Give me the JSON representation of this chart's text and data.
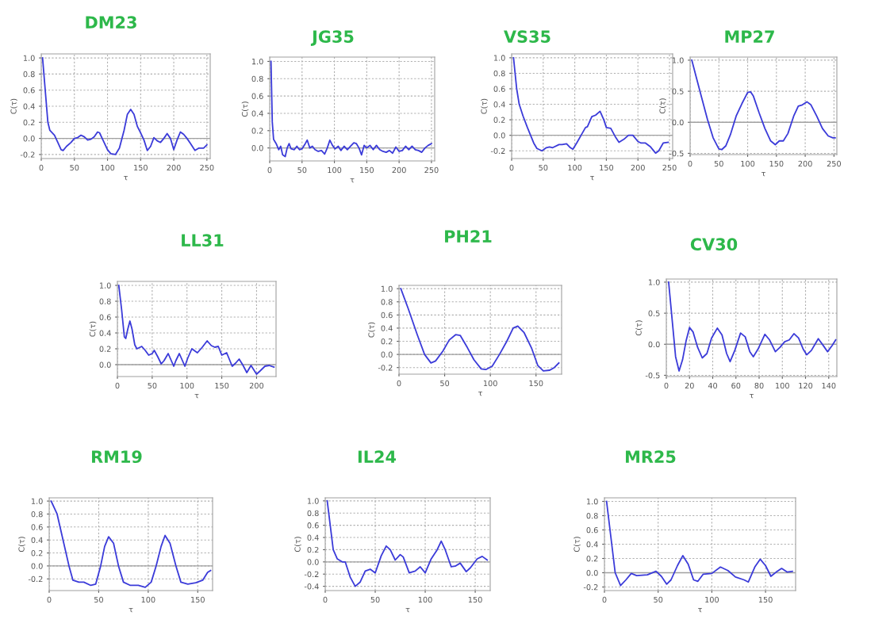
{
  "chart_data": [
    {
      "type": "line",
      "title": "DM23",
      "xlabel": "τ",
      "ylabel": "C(τ)",
      "grid": true,
      "xlim": [
        0,
        255
      ],
      "ylim": [
        -0.25,
        1.05
      ],
      "xticks": [
        0,
        50,
        100,
        150,
        200,
        250
      ],
      "yticks": [
        {
          "value": -0.2,
          "label": "-0.2"
        },
        {
          "value": 0,
          "label": "0.0"
        },
        {
          "value": 0.2,
          "label": "0.2"
        },
        {
          "value": 0.4,
          "label": "0.4"
        },
        {
          "value": 0.6,
          "label": "0.6"
        },
        {
          "value": 0.8,
          "label": "0.8"
        },
        {
          "value": 1.0,
          "label": "1.0"
        }
      ],
      "ref_lines": [
        {
          "axis": "y",
          "value": 0,
          "color": "#a0a0a0"
        }
      ],
      "x": [
        2,
        5,
        10,
        13,
        20,
        25,
        30,
        33,
        38,
        45,
        50,
        55,
        60,
        65,
        70,
        75,
        80,
        85,
        88,
        92,
        100,
        105,
        112,
        118,
        125,
        130,
        135,
        140,
        145,
        150,
        155,
        160,
        165,
        170,
        175,
        180,
        185,
        190,
        195,
        200,
        205,
        210,
        215,
        220,
        225,
        232,
        238,
        245,
        250
      ],
      "series": [
        {
          "color": "#3b3bd9",
          "values": [
            1.0,
            0.7,
            0.2,
            0.1,
            0.04,
            -0.05,
            -0.14,
            -0.15,
            -0.1,
            -0.05,
            0.0,
            0.01,
            0.04,
            0.02,
            -0.02,
            -0.01,
            0.02,
            0.08,
            0.07,
            0.0,
            -0.14,
            -0.19,
            -0.2,
            -0.12,
            0.1,
            0.3,
            0.36,
            0.3,
            0.15,
            0.07,
            -0.02,
            -0.15,
            -0.1,
            0.01,
            -0.03,
            -0.05,
            0.0,
            0.06,
            0.0,
            -0.14,
            -0.02,
            0.08,
            0.05,
            0.0,
            -0.06,
            -0.15,
            -0.12,
            -0.12,
            -0.08
          ]
        }
      ]
    },
    {
      "type": "line",
      "title": "JG35",
      "xlabel": "τ",
      "ylabel": "C(τ)",
      "grid": true,
      "xlim": [
        0,
        255
      ],
      "ylim": [
        -0.15,
        1.05
      ],
      "xticks": [
        0,
        50,
        100,
        150,
        200,
        250
      ],
      "yticks": [
        {
          "value": 0,
          "label": "0.0"
        },
        {
          "value": 0.2,
          "label": "0.2"
        },
        {
          "value": 0.4,
          "label": "0.4"
        },
        {
          "value": 0.6,
          "label": "0.6"
        },
        {
          "value": 0.8,
          "label": "0.8"
        },
        {
          "value": 1.0,
          "label": "1.0"
        }
      ],
      "ref_lines": [
        {
          "axis": "y",
          "value": 0,
          "color": "#a0a0a0"
        }
      ],
      "x": [
        2,
        4,
        6,
        10,
        14,
        17,
        20,
        24,
        27,
        30,
        33,
        38,
        42,
        46,
        50,
        55,
        58,
        62,
        66,
        70,
        75,
        80,
        85,
        89,
        93,
        97,
        101,
        106,
        110,
        115,
        120,
        125,
        130,
        134,
        138,
        142,
        146,
        150,
        155,
        160,
        165,
        170,
        175,
        180,
        185,
        190,
        195,
        200,
        205,
        210,
        215,
        220,
        225,
        230,
        235,
        240,
        245,
        250
      ],
      "series": [
        {
          "color": "#3b3bd9",
          "values": [
            1.0,
            0.3,
            0.1,
            0.05,
            -0.02,
            0.02,
            -0.08,
            -0.1,
            0.0,
            0.05,
            -0.01,
            -0.02,
            0.02,
            -0.02,
            -0.01,
            0.05,
            0.09,
            0.0,
            0.02,
            -0.02,
            -0.04,
            -0.03,
            -0.07,
            0.0,
            0.09,
            0.03,
            -0.01,
            0.02,
            -0.03,
            0.02,
            -0.02,
            0.02,
            0.06,
            0.05,
            0.0,
            -0.08,
            0.03,
            0.0,
            0.03,
            -0.02,
            0.03,
            -0.02,
            -0.04,
            -0.05,
            -0.03,
            -0.06,
            0.01,
            -0.04,
            -0.03,
            0.02,
            -0.02,
            0.02,
            -0.02,
            -0.03,
            -0.05,
            0.0,
            0.03,
            0.05
          ]
        }
      ]
    },
    {
      "type": "line",
      "title": "VS35",
      "xlabel": "τ",
      "ylabel": "C(τ)",
      "grid": true,
      "xlim": [
        0,
        255
      ],
      "ylim": [
        -0.3,
        1.05
      ],
      "xticks": [
        0,
        50,
        100,
        150,
        200,
        250
      ],
      "yticks": [
        {
          "value": -0.2,
          "label": "-0.2"
        },
        {
          "value": 0,
          "label": "0.0"
        },
        {
          "value": 0.2,
          "label": "0.2"
        },
        {
          "value": 0.4,
          "label": "0.4"
        },
        {
          "value": 0.6,
          "label": "0.6"
        },
        {
          "value": 0.8,
          "label": "0.8"
        },
        {
          "value": 1.0,
          "label": "1.0"
        }
      ],
      "ref_lines": [
        {
          "axis": "y",
          "value": 0,
          "color": "#a0a0a0"
        }
      ],
      "x": [
        3,
        8,
        12,
        18,
        25,
        30,
        35,
        40,
        48,
        55,
        60,
        65,
        75,
        80,
        87,
        93,
        97,
        103,
        110,
        117,
        120,
        127,
        133,
        140,
        146,
        150,
        157,
        165,
        170,
        178,
        185,
        192,
        200,
        205,
        212,
        220,
        228,
        233,
        240,
        248
      ],
      "series": [
        {
          "color": "#3b3bd9",
          "values": [
            1.0,
            0.6,
            0.4,
            0.25,
            0.1,
            0.0,
            -0.1,
            -0.17,
            -0.2,
            -0.16,
            -0.15,
            -0.16,
            -0.12,
            -0.12,
            -0.11,
            -0.16,
            -0.18,
            -0.1,
            0.0,
            0.1,
            0.11,
            0.24,
            0.26,
            0.31,
            0.2,
            0.1,
            0.09,
            -0.03,
            -0.09,
            -0.05,
            0.0,
            0.0,
            -0.08,
            -0.1,
            -0.1,
            -0.15,
            -0.23,
            -0.2,
            -0.1,
            -0.09
          ]
        }
      ]
    },
    {
      "type": "line",
      "title": "MP27",
      "xlabel": "τ",
      "ylabel": "C(τ)",
      "grid": true,
      "xlim": [
        0,
        255
      ],
      "ylim": [
        -0.52,
        1.05
      ],
      "xticks": [
        0,
        50,
        100,
        150,
        200,
        250
      ],
      "yticks": [
        {
          "value": -0.5,
          "label": "-0.5"
        },
        {
          "value": 0,
          "label": "0.0"
        },
        {
          "value": 0.5,
          "label": "0.5"
        },
        {
          "value": 1.0,
          "label": "1.0"
        }
      ],
      "ref_lines": [
        {
          "axis": "y",
          "value": 0,
          "color": "#a0a0a0"
        }
      ],
      "x": [
        3,
        10,
        20,
        30,
        40,
        50,
        55,
        62,
        70,
        80,
        90,
        100,
        105,
        110,
        120,
        130,
        140,
        148,
        155,
        162,
        170,
        180,
        188,
        195,
        203,
        210,
        220,
        230,
        240,
        248,
        252
      ],
      "series": [
        {
          "color": "#3b3bd9",
          "values": [
            1.0,
            0.75,
            0.4,
            0.05,
            -0.25,
            -0.43,
            -0.44,
            -0.38,
            -0.2,
            0.1,
            0.3,
            0.48,
            0.49,
            0.42,
            0.15,
            -0.1,
            -0.3,
            -0.36,
            -0.3,
            -0.3,
            -0.18,
            0.1,
            0.26,
            0.28,
            0.33,
            0.28,
            0.1,
            -0.1,
            -0.22,
            -0.25,
            -0.25
          ]
        }
      ]
    },
    {
      "type": "line",
      "title": "LL31",
      "xlabel": "τ",
      "ylabel": "C(τ)",
      "grid": true,
      "xlim": [
        0,
        228
      ],
      "ylim": [
        -0.15,
        1.05
      ],
      "xticks": [
        0,
        50,
        100,
        150,
        200
      ],
      "yticks": [
        {
          "value": 0,
          "label": "0.0"
        },
        {
          "value": 0.2,
          "label": "0.2"
        },
        {
          "value": 0.4,
          "label": "0.4"
        },
        {
          "value": 0.6,
          "label": "0.6"
        },
        {
          "value": 0.8,
          "label": "0.8"
        },
        {
          "value": 1.0,
          "label": "1.0"
        }
      ],
      "ref_lines": [
        {
          "axis": "y",
          "value": 0,
          "color": "#a0a0a0"
        }
      ],
      "x": [
        2,
        6,
        10,
        12,
        15,
        18,
        21,
        25,
        28,
        35,
        40,
        45,
        50,
        53,
        58,
        63,
        67,
        73,
        77,
        81,
        84,
        89,
        92,
        97,
        101,
        107,
        115,
        122,
        129,
        135,
        140,
        145,
        150,
        157,
        165,
        170,
        175,
        180,
        186,
        192,
        200,
        205,
        212,
        218,
        225
      ],
      "series": [
        {
          "color": "#3b3bd9",
          "values": [
            1.0,
            0.7,
            0.35,
            0.33,
            0.45,
            0.55,
            0.45,
            0.25,
            0.2,
            0.23,
            0.18,
            0.12,
            0.14,
            0.18,
            0.1,
            0.01,
            0.05,
            0.14,
            0.06,
            -0.02,
            0.05,
            0.14,
            0.08,
            -0.02,
            0.08,
            0.2,
            0.15,
            0.22,
            0.3,
            0.24,
            0.22,
            0.23,
            0.12,
            0.15,
            -0.02,
            0.02,
            0.07,
            0.0,
            -0.1,
            -0.01,
            -0.12,
            -0.08,
            -0.02,
            -0.01,
            -0.03
          ]
        }
      ]
    },
    {
      "type": "line",
      "title": "PH21",
      "xlabel": "τ",
      "ylabel": "C(τ)",
      "grid": true,
      "xlim": [
        0,
        178
      ],
      "ylim": [
        -0.3,
        1.05
      ],
      "xticks": [
        0,
        50,
        100,
        150
      ],
      "yticks": [
        {
          "value": -0.2,
          "label": "-0.2"
        },
        {
          "value": 0,
          "label": "0.0"
        },
        {
          "value": 0.2,
          "label": "0.2"
        },
        {
          "value": 0.4,
          "label": "0.4"
        },
        {
          "value": 0.6,
          "label": "0.6"
        },
        {
          "value": 0.8,
          "label": "0.8"
        },
        {
          "value": 1.0,
          "label": "1.0"
        }
      ],
      "ref_lines": [
        {
          "axis": "y",
          "value": 0,
          "color": "#a0a0a0"
        }
      ],
      "x": [
        2,
        10,
        20,
        28,
        35,
        40,
        48,
        55,
        62,
        67,
        75,
        82,
        90,
        95,
        102,
        110,
        118,
        125,
        130,
        137,
        145,
        152,
        158,
        165,
        170,
        175
      ],
      "series": [
        {
          "color": "#3b3bd9",
          "values": [
            1.0,
            0.7,
            0.3,
            0.0,
            -0.13,
            -0.1,
            0.05,
            0.22,
            0.3,
            0.29,
            0.1,
            -0.08,
            -0.22,
            -0.23,
            -0.18,
            0.0,
            0.2,
            0.4,
            0.43,
            0.33,
            0.1,
            -0.17,
            -0.25,
            -0.24,
            -0.2,
            -0.13
          ]
        }
      ]
    },
    {
      "type": "line",
      "title": "CV30",
      "xlabel": "τ",
      "ylabel": "C(τ)",
      "grid": true,
      "xlim": [
        0,
        147
      ],
      "ylim": [
        -0.52,
        1.05
      ],
      "xticks": [
        0,
        20,
        40,
        60,
        80,
        100,
        120,
        140
      ],
      "yticks": [
        {
          "value": -0.5,
          "label": "-0.5"
        },
        {
          "value": 0,
          "label": "0.0"
        },
        {
          "value": 0.5,
          "label": "0.5"
        },
        {
          "value": 1.0,
          "label": "1.0"
        }
      ],
      "ref_lines": [
        {
          "axis": "y",
          "value": 0,
          "color": "#a0a0a0"
        }
      ],
      "x": [
        2,
        5,
        8,
        11,
        14,
        17,
        20,
        23,
        27,
        31,
        35,
        39,
        44,
        48,
        52,
        55,
        59,
        64,
        68,
        72,
        75,
        79,
        85,
        89,
        94,
        98,
        102,
        106,
        110,
        114,
        118,
        121,
        125,
        131,
        136,
        139,
        143,
        146
      ],
      "series": [
        {
          "color": "#3b3bd9",
          "values": [
            1.0,
            0.4,
            -0.2,
            -0.43,
            -0.25,
            0.05,
            0.27,
            0.2,
            -0.05,
            -0.22,
            -0.15,
            0.1,
            0.26,
            0.15,
            -0.15,
            -0.28,
            -0.1,
            0.18,
            0.12,
            -0.12,
            -0.2,
            -0.08,
            0.16,
            0.07,
            -0.12,
            -0.05,
            0.04,
            0.07,
            0.17,
            0.1,
            -0.08,
            -0.17,
            -0.1,
            0.09,
            -0.04,
            -0.12,
            -0.02,
            0.07
          ]
        }
      ]
    },
    {
      "type": "line",
      "title": "RM19",
      "xlabel": "τ",
      "ylabel": "C(τ)",
      "grid": true,
      "xlim": [
        0,
        165
      ],
      "ylim": [
        -0.38,
        1.05
      ],
      "xticks": [
        0,
        50,
        100,
        150
      ],
      "yticks": [
        {
          "value": -0.2,
          "label": "-0.2"
        },
        {
          "value": 0,
          "label": "0.0"
        },
        {
          "value": 0.2,
          "label": "0.2"
        },
        {
          "value": 0.4,
          "label": "0.4"
        },
        {
          "value": 0.6,
          "label": "0.6"
        },
        {
          "value": 0.8,
          "label": "0.8"
        },
        {
          "value": 1.0,
          "label": "1.0"
        }
      ],
      "ref_lines": [
        {
          "axis": "y",
          "value": 0,
          "color": "#a0a0a0"
        }
      ],
      "x": [
        2,
        8,
        14,
        20,
        24,
        30,
        35,
        42,
        47,
        52,
        56,
        60,
        65,
        70,
        75,
        82,
        90,
        97,
        103,
        108,
        113,
        117,
        122,
        128,
        133,
        140,
        148,
        155,
        160,
        163
      ],
      "series": [
        {
          "color": "#3b3bd9",
          "values": [
            1.0,
            0.8,
            0.4,
            0.0,
            -0.22,
            -0.25,
            -0.25,
            -0.3,
            -0.28,
            0.0,
            0.3,
            0.45,
            0.35,
            0.0,
            -0.25,
            -0.3,
            -0.3,
            -0.33,
            -0.25,
            0.0,
            0.3,
            0.47,
            0.35,
            0.0,
            -0.25,
            -0.28,
            -0.26,
            -0.22,
            -0.1,
            -0.07
          ]
        }
      ]
    },
    {
      "type": "line",
      "title": "IL24",
      "xlabel": "τ",
      "ylabel": "C(τ)",
      "grid": true,
      "xlim": [
        0,
        165
      ],
      "ylim": [
        -0.47,
        1.05
      ],
      "xticks": [
        0,
        50,
        100,
        150
      ],
      "yticks": [
        {
          "value": -0.4,
          "label": "-0.4"
        },
        {
          "value": -0.2,
          "label": "-0.2"
        },
        {
          "value": 0,
          "label": "0.0"
        },
        {
          "value": 0.2,
          "label": "0.2"
        },
        {
          "value": 0.4,
          "label": "0.4"
        },
        {
          "value": 0.6,
          "label": "0.6"
        },
        {
          "value": 0.8,
          "label": "0.8"
        },
        {
          "value": 1.0,
          "label": "1.0"
        }
      ],
      "ref_lines": [
        {
          "axis": "y",
          "value": 0,
          "color": "#a0a0a0"
        }
      ],
      "x": [
        2,
        5,
        8,
        12,
        17,
        20,
        25,
        30,
        35,
        40,
        45,
        50,
        56,
        61,
        65,
        70,
        75,
        78,
        84,
        90,
        95,
        100,
        106,
        112,
        116,
        120,
        126,
        130,
        135,
        141,
        145,
        152,
        157,
        162
      ],
      "series": [
        {
          "color": "#3b3bd9",
          "values": [
            1.0,
            0.6,
            0.2,
            0.05,
            0.0,
            0.0,
            -0.25,
            -0.4,
            -0.33,
            -0.15,
            -0.12,
            -0.18,
            0.1,
            0.26,
            0.2,
            0.03,
            0.12,
            0.08,
            -0.18,
            -0.15,
            -0.08,
            -0.18,
            0.05,
            0.2,
            0.34,
            0.2,
            -0.08,
            -0.07,
            -0.02,
            -0.16,
            -0.1,
            0.05,
            0.09,
            0.03
          ]
        }
      ]
    },
    {
      "type": "line",
      "title": "MR25",
      "xlabel": "τ",
      "ylabel": "C(τ)",
      "grid": true,
      "xlim": [
        0,
        178
      ],
      "ylim": [
        -0.25,
        1.05
      ],
      "xticks": [
        0,
        50,
        100,
        150
      ],
      "yticks": [
        {
          "value": -0.2,
          "label": "-0.2"
        },
        {
          "value": 0,
          "label": "0.0"
        },
        {
          "value": 0.2,
          "label": "0.2"
        },
        {
          "value": 0.4,
          "label": "0.4"
        },
        {
          "value": 0.6,
          "label": "0.6"
        },
        {
          "value": 0.8,
          "label": "0.8"
        },
        {
          "value": 1.0,
          "label": "1.0"
        }
      ],
      "ref_lines": [
        {
          "axis": "y",
          "value": 0,
          "color": "#a0a0a0"
        }
      ],
      "x": [
        2,
        6,
        10,
        15,
        20,
        25,
        30,
        40,
        48,
        53,
        58,
        62,
        68,
        73,
        78,
        83,
        87,
        92,
        100,
        108,
        115,
        122,
        130,
        134,
        140,
        145,
        150,
        155,
        160,
        165,
        170,
        175
      ],
      "series": [
        {
          "color": "#3b3bd9",
          "values": [
            1.0,
            0.5,
            0.0,
            -0.18,
            -0.1,
            -0.01,
            -0.04,
            -0.03,
            0.02,
            -0.05,
            -0.16,
            -0.1,
            0.1,
            0.24,
            0.12,
            -0.1,
            -0.12,
            -0.02,
            -0.01,
            0.08,
            0.03,
            -0.06,
            -0.1,
            -0.13,
            0.08,
            0.19,
            0.1,
            -0.05,
            0.01,
            0.06,
            0.01,
            0.02
          ]
        }
      ]
    }
  ]
}
